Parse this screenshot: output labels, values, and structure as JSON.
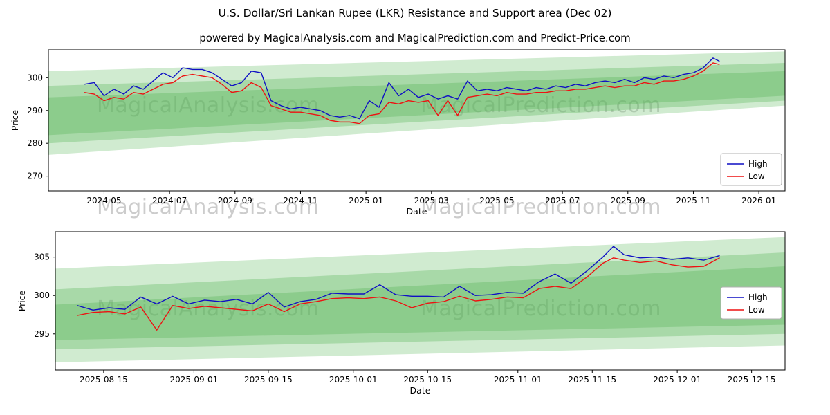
{
  "title": "U.S. Dollar/Sri Lankan Rupee (LKR) Resistance and Support area (Dec 02)",
  "subtitle": "powered by MagicalAnalysis.com and MagicalPrediction.com and Predict-Price.com",
  "watermarks": [
    "MagicalAnalysis.com",
    "MagicalPrediction.com"
  ],
  "colors": {
    "high_line": "#0f0fc4",
    "low_line": "#ee1111",
    "band_green": "#5fb75f",
    "watermark_gray": "#b8b8b8"
  },
  "chart_data": [
    {
      "type": "line",
      "title": "",
      "xlabel": "Date",
      "ylabel": "Price",
      "x_unit": "months since 2024-01",
      "xlim": [
        2.3,
        24.8
      ],
      "ylim": [
        265.5,
        308.5
      ],
      "xticks": {
        "values": [
          4,
          6,
          8,
          10,
          12,
          14,
          16,
          18,
          20,
          22,
          24
        ],
        "labels": [
          "2024-05",
          "2024-07",
          "2024-09",
          "2024-11",
          "2025-01",
          "2025-03",
          "2025-05",
          "2025-07",
          "2025-09",
          "2025-11",
          "2026-01"
        ]
      },
      "yticks": {
        "values": [
          270,
          280,
          290,
          300
        ],
        "labels": [
          "270",
          "280",
          "290",
          "300"
        ]
      },
      "x": [
        3.4,
        3.7,
        4.0,
        4.3,
        4.6,
        4.9,
        5.2,
        5.5,
        5.8,
        6.1,
        6.4,
        6.7,
        7.0,
        7.3,
        7.6,
        7.9,
        8.2,
        8.5,
        8.8,
        9.1,
        9.4,
        9.7,
        10.0,
        10.3,
        10.6,
        10.9,
        11.2,
        11.5,
        11.8,
        12.1,
        12.4,
        12.7,
        13.0,
        13.3,
        13.6,
        13.9,
        14.2,
        14.5,
        14.8,
        15.1,
        15.4,
        15.7,
        16.0,
        16.3,
        16.6,
        16.9,
        17.2,
        17.5,
        17.8,
        18.1,
        18.4,
        18.7,
        19.0,
        19.3,
        19.6,
        19.9,
        20.2,
        20.5,
        20.8,
        21.1,
        21.4,
        21.7,
        22.0,
        22.3,
        22.6,
        22.8
      ],
      "series": [
        {
          "name": "High",
          "color": "#0f0fc4",
          "values": [
            298.0,
            298.5,
            294.5,
            296.5,
            295.0,
            297.5,
            296.5,
            299.0,
            301.5,
            300.0,
            303.0,
            302.5,
            302.5,
            301.5,
            299.5,
            297.5,
            298.5,
            302.0,
            301.5,
            293.0,
            291.5,
            290.5,
            291.0,
            290.5,
            290.0,
            288.5,
            288.0,
            288.5,
            287.5,
            293.0,
            291.0,
            298.5,
            294.5,
            296.5,
            294.0,
            295.0,
            293.5,
            294.5,
            293.5,
            299.0,
            296.0,
            296.5,
            296.0,
            297.0,
            296.5,
            296.0,
            297.0,
            296.5,
            297.5,
            297.0,
            298.0,
            297.5,
            298.5,
            299.0,
            298.5,
            299.5,
            298.5,
            300.0,
            299.5,
            300.5,
            300.0,
            301.0,
            301.5,
            303.0,
            306.0,
            305.0
          ]
        },
        {
          "name": "Low",
          "color": "#ee1111",
          "values": [
            295.5,
            295.0,
            293.0,
            294.0,
            293.5,
            295.5,
            295.0,
            296.5,
            298.0,
            298.5,
            300.5,
            301.0,
            300.5,
            300.0,
            298.0,
            295.5,
            296.0,
            298.5,
            297.0,
            291.5,
            290.5,
            289.5,
            289.5,
            289.0,
            288.5,
            287.0,
            286.5,
            286.5,
            286.0,
            288.5,
            289.0,
            292.5,
            292.0,
            293.0,
            292.5,
            293.0,
            288.5,
            293.0,
            288.5,
            294.0,
            294.5,
            295.0,
            294.5,
            295.5,
            295.0,
            295.0,
            295.5,
            295.5,
            296.0,
            296.0,
            296.5,
            296.5,
            297.0,
            297.5,
            297.0,
            297.5,
            297.5,
            298.5,
            298.0,
            299.0,
            299.0,
            299.5,
            300.5,
            302.0,
            304.5,
            304.0
          ]
        }
      ],
      "bands": [
        {
          "x": [
            2.3,
            24.8
          ],
          "top": [
            302.0,
            308.0
          ],
          "bottom": [
            276.5,
            291.5
          ],
          "color": "#79c779",
          "opacity": 0.35
        },
        {
          "x": [
            2.3,
            24.8
          ],
          "top": [
            297.5,
            304.5
          ],
          "bottom": [
            280.0,
            293.0
          ],
          "color": "#5fb75f",
          "opacity": 0.35
        },
        {
          "x": [
            2.3,
            24.8
          ],
          "top": [
            294.0,
            302.0
          ],
          "bottom": [
            282.5,
            294.5
          ],
          "color": "#4daf4d",
          "opacity": 0.3
        }
      ],
      "legend": [
        "High",
        "Low"
      ],
      "legend_position": "right"
    },
    {
      "type": "line",
      "title": "",
      "xlabel": "Date",
      "ylabel": "Price",
      "x_unit": "days since 2025-08-01",
      "xlim": [
        4.9,
        142.3
      ],
      "ylim": [
        290.3,
        308.3
      ],
      "xticks": {
        "values": [
          14,
          31,
          45,
          61,
          75,
          92,
          106,
          122,
          136
        ],
        "labels": [
          "2025-08-15",
          "2025-09-01",
          "2025-09-15",
          "2025-10-01",
          "2025-10-15",
          "2025-11-01",
          "2025-11-15",
          "2025-12-01",
          "2025-12-15"
        ]
      },
      "yticks": {
        "values": [
          295,
          300,
          305
        ],
        "labels": [
          "295",
          "300",
          "305"
        ]
      },
      "x": [
        9,
        12,
        15,
        18,
        21,
        24,
        27,
        30,
        33,
        36,
        39,
        42,
        45,
        48,
        51,
        54,
        57,
        60,
        63,
        66,
        69,
        72,
        75,
        78,
        81,
        84,
        87,
        90,
        93,
        96,
        99,
        102,
        105,
        108,
        110,
        112,
        115,
        118,
        121,
        124,
        127,
        130
      ],
      "series": [
        {
          "name": "High",
          "color": "#0f0fc4",
          "values": [
            298.7,
            298.1,
            298.4,
            298.2,
            299.8,
            298.9,
            299.9,
            298.9,
            299.4,
            299.2,
            299.5,
            298.9,
            300.4,
            298.5,
            299.2,
            299.5,
            300.3,
            300.2,
            300.2,
            301.4,
            300.1,
            299.9,
            299.9,
            299.8,
            301.2,
            300.0,
            300.1,
            300.4,
            300.3,
            301.8,
            302.8,
            301.6,
            303.2,
            305.0,
            306.4,
            305.3,
            304.9,
            305.0,
            304.7,
            304.9,
            304.6,
            305.2
          ]
        },
        {
          "name": "Low",
          "color": "#ee1111",
          "values": [
            297.4,
            297.8,
            297.9,
            297.6,
            298.5,
            295.5,
            298.7,
            298.3,
            298.6,
            298.4,
            298.2,
            298.0,
            298.9,
            297.9,
            298.9,
            299.2,
            299.6,
            299.7,
            299.6,
            299.8,
            299.3,
            298.4,
            299.0,
            299.2,
            299.9,
            299.3,
            299.5,
            299.8,
            299.7,
            300.9,
            301.2,
            300.9,
            302.4,
            304.2,
            304.9,
            304.6,
            304.3,
            304.5,
            304.0,
            303.7,
            303.8,
            304.9
          ]
        }
      ],
      "bands": [
        {
          "x": [
            4.9,
            142.3
          ],
          "top": [
            303.5,
            307.6
          ],
          "bottom": [
            291.3,
            293.5
          ],
          "color": "#79c779",
          "opacity": 0.35
        },
        {
          "x": [
            4.9,
            142.3
          ],
          "top": [
            300.8,
            305.6
          ],
          "bottom": [
            293.0,
            295.0
          ],
          "color": "#5fb75f",
          "opacity": 0.35
        },
        {
          "x": [
            4.9,
            142.3
          ],
          "top": [
            298.8,
            303.8
          ],
          "bottom": [
            294.2,
            296.2
          ],
          "color": "#4daf4d",
          "opacity": 0.3
        }
      ],
      "legend": [
        "High",
        "Low"
      ],
      "legend_position": "right"
    }
  ]
}
